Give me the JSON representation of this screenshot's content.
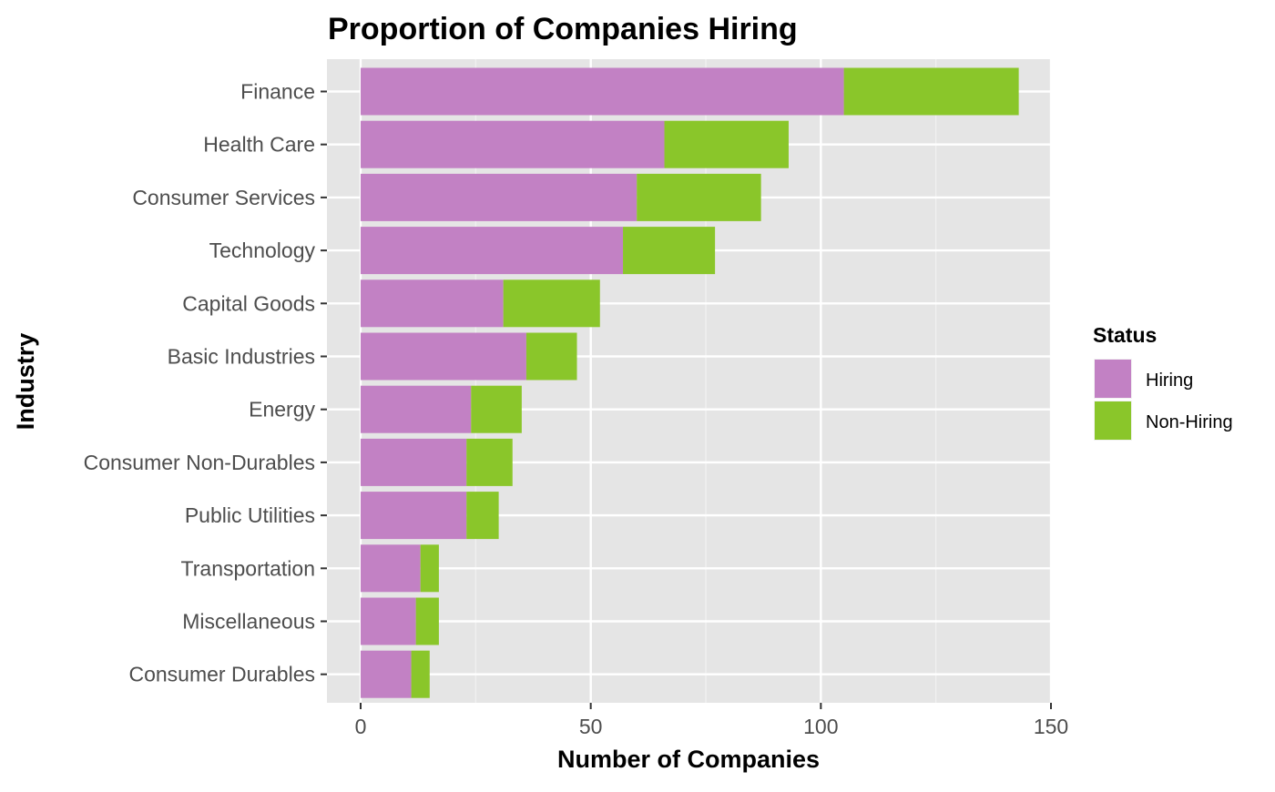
{
  "chart_data": {
    "type": "bar",
    "orientation": "horizontal",
    "stacked": true,
    "title": "Proportion of Companies Hiring",
    "xlabel": "Number of Companies",
    "ylabel": "Industry",
    "xlim": [
      0,
      150
    ],
    "x_ticks": [
      0,
      50,
      100,
      150
    ],
    "grid": true,
    "legend": {
      "title": "Status",
      "position": "right"
    },
    "categories": [
      "Finance",
      "Health Care",
      "Consumer Services",
      "Technology",
      "Capital Goods",
      "Basic Industries",
      "Energy",
      "Consumer Non-Durables",
      "Public Utilities",
      "Transportation",
      "Miscellaneous",
      "Consumer Durables"
    ],
    "series": [
      {
        "name": "Hiring",
        "color": "#C281C4",
        "values": [
          105,
          66,
          60,
          57,
          31,
          36,
          24,
          23,
          23,
          13,
          12,
          11
        ]
      },
      {
        "name": "Non-Hiring",
        "color": "#8AC62A",
        "values": [
          38,
          27,
          27,
          20,
          21,
          11,
          11,
          10,
          7,
          4,
          5,
          4
        ]
      }
    ]
  }
}
